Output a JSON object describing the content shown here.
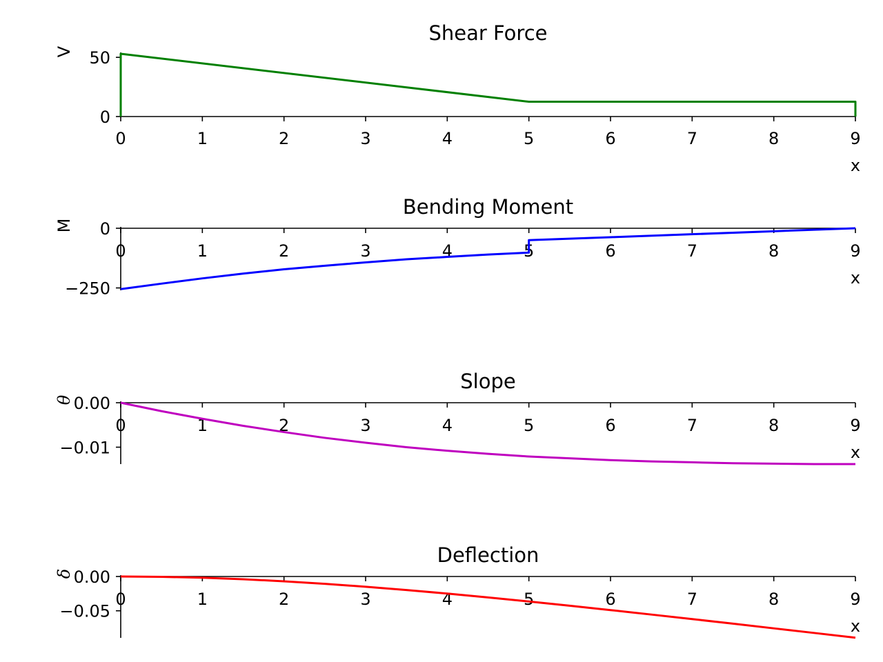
{
  "chart_data": [
    {
      "type": "line",
      "title": "Shear Force",
      "xlabel": "x",
      "ylabel": "V",
      "xlim": [
        0,
        9
      ],
      "ylim": [
        0,
        53
      ],
      "xticks": [
        "0",
        "1",
        "2",
        "3",
        "4",
        "5",
        "6",
        "7",
        "8",
        "9"
      ],
      "yticks": [
        {
          "value": 0,
          "label": "0"
        },
        {
          "value": 50,
          "label": "50"
        }
      ],
      "grid": false,
      "color": "#008000",
      "series": [
        {
          "x": [
            0,
            0,
            5,
            5,
            9,
            9
          ],
          "y": [
            0,
            53,
            12.5,
            12.5,
            12.5,
            0
          ]
        }
      ]
    },
    {
      "type": "line",
      "title": "Bending Moment",
      "xlabel": "x",
      "ylabel": "M",
      "xlim": [
        0,
        9
      ],
      "ylim": [
        -260,
        0
      ],
      "xticks": [
        "0",
        "1",
        "2",
        "3",
        "4",
        "5",
        "6",
        "7",
        "8",
        "9"
      ],
      "yticks": [
        {
          "value": 0,
          "label": "0"
        },
        {
          "value": -250,
          "label": "−250"
        }
      ],
      "grid": false,
      "color": "#0000ff",
      "series": [
        {
          "x": [
            0,
            0.5,
            1,
            1.5,
            2,
            2.5,
            3,
            3.5,
            4,
            4.5,
            5,
            5,
            6,
            7,
            8,
            9
          ],
          "y": [
            -255,
            -232,
            -210,
            -190,
            -172,
            -157,
            -143,
            -130,
            -120,
            -110,
            -102,
            -50,
            -37.5,
            -25,
            -12.5,
            0
          ]
        }
      ]
    },
    {
      "type": "line",
      "title": "Slope",
      "xlabel": "x",
      "ylabel": "θ",
      "xlim": [
        0,
        9
      ],
      "ylim": [
        -0.0138,
        0
      ],
      "xticks": [
        "0",
        "1",
        "2",
        "3",
        "4",
        "5",
        "6",
        "7",
        "8",
        "9"
      ],
      "yticks": [
        {
          "value": 0,
          "label": "0.00"
        },
        {
          "value": -0.01,
          "label": "−0.01"
        }
      ],
      "grid": false,
      "color": "#bf00bf",
      "series": [
        {
          "x": [
            0,
            0.5,
            1,
            1.5,
            2,
            2.5,
            3,
            3.5,
            4,
            4.5,
            5,
            5.5,
            6,
            6.5,
            7,
            7.5,
            8,
            8.5,
            9
          ],
          "y": [
            0,
            -0.0019,
            -0.0036,
            -0.0052,
            -0.0066,
            -0.0079,
            -0.009,
            -0.01,
            -0.0108,
            -0.0115,
            -0.0121,
            -0.0125,
            -0.0129,
            -0.0132,
            -0.0134,
            -0.0136,
            -0.0137,
            -0.0138,
            -0.0138
          ]
        }
      ]
    },
    {
      "type": "line",
      "title": "Deflection",
      "xlabel": "x",
      "ylabel": "δ",
      "xlim": [
        0,
        9
      ],
      "ylim": [
        -0.0895,
        0
      ],
      "xticks": [
        "0",
        "1",
        "2",
        "3",
        "4",
        "5",
        "6",
        "7",
        "8",
        "9"
      ],
      "yticks": [
        {
          "value": 0,
          "label": "0.00"
        },
        {
          "value": -0.05,
          "label": "−0.05"
        }
      ],
      "grid": false,
      "color": "#ff0000",
      "series": [
        {
          "x": [
            0,
            0.5,
            1,
            1.5,
            2,
            2.5,
            3,
            3.5,
            4,
            4.5,
            5,
            5.5,
            6,
            6.5,
            7,
            7.5,
            8,
            8.5,
            9
          ],
          "y": [
            0,
            -0.0005,
            -0.0018,
            -0.004,
            -0.007,
            -0.0107,
            -0.0149,
            -0.0197,
            -0.0249,
            -0.0305,
            -0.0365,
            -0.0426,
            -0.049,
            -0.0555,
            -0.0621,
            -0.0688,
            -0.0756,
            -0.0824,
            -0.0893
          ]
        }
      ]
    }
  ]
}
